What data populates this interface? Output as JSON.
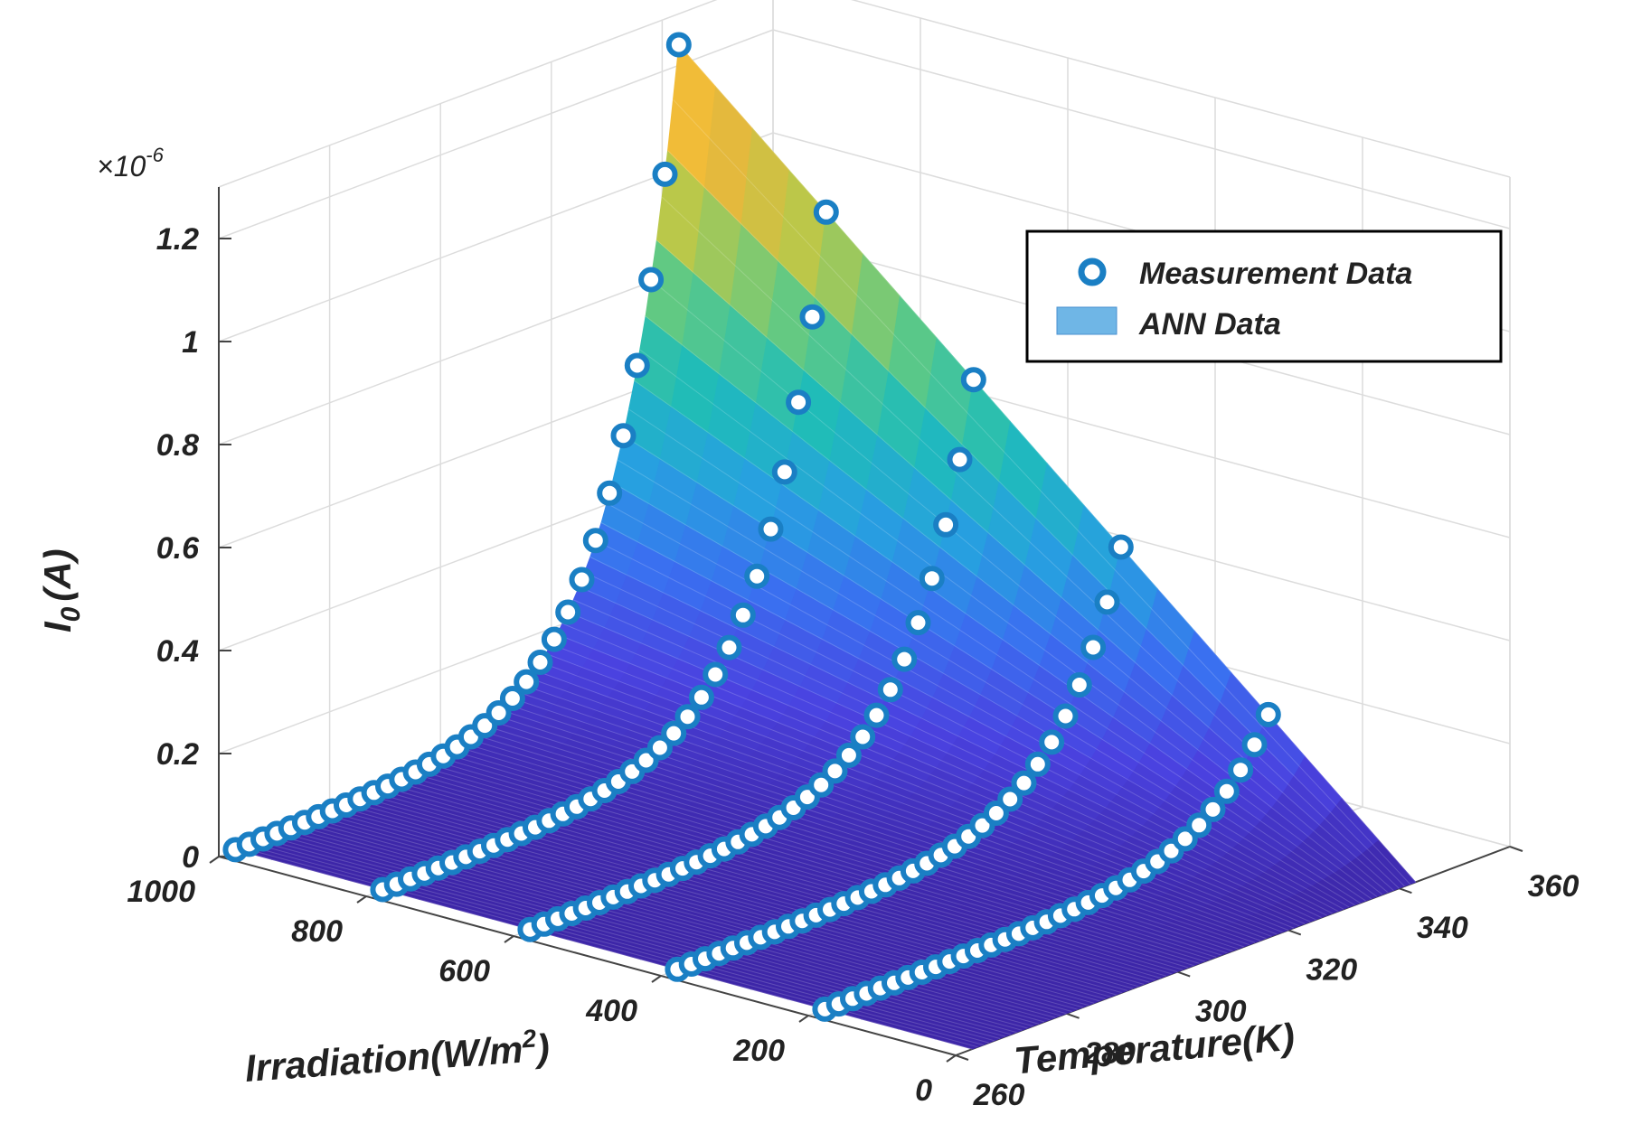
{
  "chart_data": {
    "type": "surface3d",
    "title": "",
    "xlabel": "Temperature(K)",
    "ylabel": "Irradiation(W/m",
    "ylabel_sup": "2",
    "ylabel_close": ")",
    "zlabel_main": "I",
    "zlabel_sub": "0",
    "zlabel_unit": "(A)",
    "z_exponent_prefix": "×10",
    "z_exponent_power": "-6",
    "xlim": [
      260,
      360
    ],
    "ylim": [
      0,
      1000
    ],
    "zlim": [
      0,
      1.3
    ],
    "x_ticks": [
      260,
      280,
      300,
      320,
      340,
      360
    ],
    "x_tick_labels": [
      "260",
      "280",
      "300",
      "320",
      "340",
      "360"
    ],
    "y_ticks": [
      0,
      200,
      400,
      600,
      800,
      1000
    ],
    "y_tick_labels": [
      "0",
      "200",
      "400",
      "600",
      "800",
      "1000"
    ],
    "z_ticks": [
      0,
      0.2,
      0.4,
      0.6,
      0.8,
      1.0,
      1.2
    ],
    "z_tick_labels": [
      "0",
      "0.2",
      "0.4",
      "0.6",
      "0.8",
      "1",
      "1.2"
    ],
    "grid": true,
    "legend": {
      "position": "top-right",
      "entries": [
        {
          "label": "Measurement Data",
          "style": "marker-circle",
          "color": "#1a7fc4"
        },
        {
          "label": "ANN Data",
          "style": "surface-patch",
          "color": "#6fb6e6"
        }
      ]
    },
    "temperature_range_K": [
      263,
      343
    ],
    "measurement_irradiance_W_m2": [
      1000,
      800,
      600,
      400,
      200
    ],
    "measurement_points_per_line": 33,
    "series": [
      {
        "name": "Measurement Data",
        "irradiance": 1000,
        "x_start": 263,
        "x_end": 343,
        "z_start": 0.005,
        "z_end": 1.24
      },
      {
        "name": "Measurement Data",
        "irradiance": 800,
        "x_start": 263,
        "x_end": 343,
        "z_start": 0.004,
        "z_end": 0.99
      },
      {
        "name": "Measurement Data",
        "irradiance": 600,
        "x_start": 263,
        "x_end": 343,
        "z_start": 0.003,
        "z_end": 0.75
      },
      {
        "name": "Measurement Data",
        "irradiance": 400,
        "x_start": 263,
        "x_end": 343,
        "z_start": 0.002,
        "z_end": 0.5
      },
      {
        "name": "Measurement Data",
        "irradiance": 200,
        "x_start": 263,
        "x_end": 343,
        "z_start": 0.001,
        "z_end": 0.25
      }
    ],
    "surface": {
      "name": "ANN Data",
      "model": "z = (G/1000) * 1.24 * 2^((T-343)/8)"
    },
    "colors": {
      "marker": "#1a7fc4",
      "colormap": [
        "#3d26a8",
        "#4a42e0",
        "#3a6ff0",
        "#27a0e0",
        "#1fbcb9",
        "#5cc987",
        "#b9c84a",
        "#f0b53a",
        "#f9e02a"
      ],
      "grid": "#dcdcdc",
      "axis": "#444444"
    }
  }
}
